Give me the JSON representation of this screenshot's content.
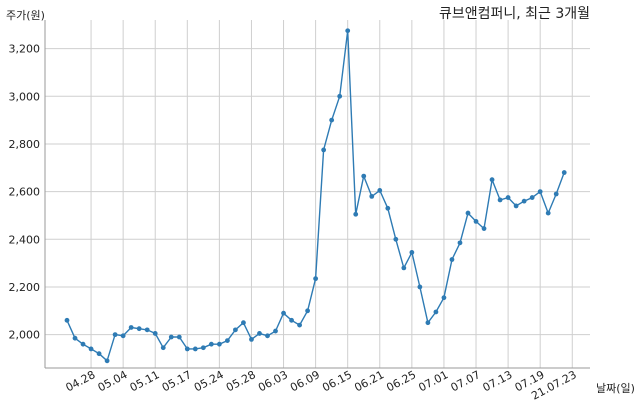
{
  "chart_data": {
    "type": "line",
    "title": "큐브앤컴퍼니, 최근 3개월",
    "ylabel": "주가(원)",
    "xlabel": "날짜(일)",
    "ylim": [
      1860,
      3320
    ],
    "grid": true,
    "y_ticks": [
      2000,
      2200,
      2400,
      2600,
      2800,
      3000,
      3200
    ],
    "y_tick_labels": [
      "2,000",
      "2,200",
      "2,400",
      "2,600",
      "2,800",
      "3,000",
      "3,200"
    ],
    "x_tick_labels": [
      "04.28",
      "05.04",
      "05.11",
      "05.17",
      "05.24",
      "05.28",
      "06.03",
      "06.09",
      "06.15",
      "06.21",
      "06.25",
      "07.01",
      "07.07",
      "07.13",
      "07.19",
      "21.07.23"
    ],
    "x_tick_positions": [
      3,
      7,
      11,
      15,
      19,
      23,
      27,
      31,
      35,
      39,
      43,
      47,
      51,
      55,
      59,
      63
    ],
    "color": "#2e7bb4",
    "series": [
      {
        "values": [
          2060,
          1985,
          1960,
          1940,
          1920,
          1890,
          2000,
          1995,
          2030,
          2025,
          2020,
          2005,
          1945,
          1990,
          1990,
          1940,
          1940,
          1945,
          1960,
          1960,
          1975,
          2020,
          2050,
          1980,
          2005,
          1995,
          2015,
          2090,
          2060,
          2040,
          2100,
          2235,
          2775,
          2900,
          3000,
          3275,
          2505,
          2665,
          2580,
          2605,
          2530,
          2400,
          2280,
          2345,
          2200,
          2050,
          2095,
          2155,
          2315,
          2385,
          2510,
          2475,
          2445,
          2650,
          2565,
          2575,
          2540,
          2560,
          2575,
          2600,
          2510,
          2590,
          2680
        ]
      }
    ]
  }
}
